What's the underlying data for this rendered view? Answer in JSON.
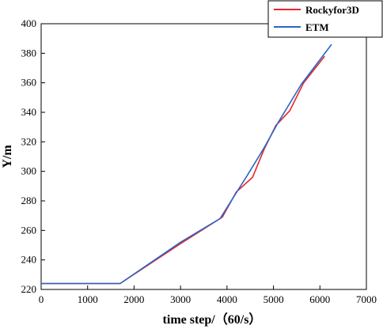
{
  "chart_data": {
    "type": "line",
    "title": "",
    "xlabel": "time step/（60/s）",
    "ylabel": "Y/m",
    "xlim": [
      0,
      7000
    ],
    "ylim": [
      220,
      400
    ],
    "xticks": [
      0,
      1000,
      2000,
      3000,
      4000,
      5000,
      6000,
      7000
    ],
    "yticks": [
      220,
      240,
      260,
      280,
      300,
      320,
      340,
      360,
      380,
      400
    ],
    "grid": false,
    "legend_position": "top-right",
    "series": [
      {
        "name": "Rockyfor3D",
        "color": "#e8252a",
        "x": [
          0,
          1700,
          3000,
          3900,
          4200,
          4550,
          4800,
          5050,
          5350,
          5650,
          6100
        ],
        "y": [
          224,
          224,
          251,
          269,
          286,
          296,
          315,
          331,
          341,
          360,
          378
        ]
      },
      {
        "name": "ETM",
        "color": "#2b66c4",
        "x": [
          0,
          1700,
          3000,
          3850,
          4450,
          4800,
          5100,
          5600,
          6250
        ],
        "y": [
          224,
          224,
          252,
          268,
          298,
          316,
          333,
          359,
          386
        ]
      }
    ]
  }
}
